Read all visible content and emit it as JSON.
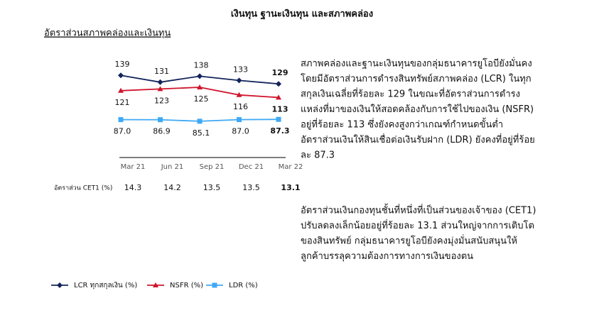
{
  "header": {
    "title": "เงินทุน ฐานะเงินทุน และสภาพคล่อง"
  },
  "chart_data": {
    "type": "line",
    "title": "อัตราส่วนสภาพคล่องและเงินทุน",
    "categories": [
      "Mar 21",
      "Jun 21",
      "Sep 21",
      "Dec 21",
      "Mar 22"
    ],
    "series": [
      {
        "name": "LCR ทุกสกุลเงิน (%)",
        "color": "#13245a",
        "marker": "diamond",
        "values": [
          139,
          131,
          138,
          133,
          129
        ]
      },
      {
        "name": "NSFR (%)",
        "color": "#d0142c",
        "marker": "triangle",
        "values": [
          121,
          123,
          125,
          116,
          113
        ]
      },
      {
        "name": "LDR (%)",
        "color": "#3fa9f5",
        "marker": "square",
        "values": [
          87.0,
          86.9,
          85.1,
          87.0,
          87.3
        ],
        "value_labels": [
          "87.0",
          "86.9",
          "85.1",
          "87.0",
          "87.3"
        ]
      }
    ],
    "ylim": [
      40,
      160
    ]
  },
  "cet1_table": {
    "label": "อัตราส่วน CET1 (%)",
    "values": [
      14.3,
      14.2,
      13.5,
      13.5,
      13.1
    ]
  },
  "body": {
    "paragraphs": [
      [
        "สภาพคล่องและฐานะเงินทุนของกลุ่มธนาคารยูโอบียังมั่นคง",
        "โดยมีอัตราส่วนการดำรงสินทรัพย์สภาพคล่อง (LCR) ในทุก",
        "สกุลเงินเฉลี่ยที่ร้อยละ 129 ในขณะที่อัตราส่วนการดำรง",
        "แหล่งที่มาของเงินให้สอดคล้องกับการใช้ไปของเงิน (NSFR)",
        "อยู่ที่ร้อยละ 113 ซึ่งยังคงสูงกว่าเกณฑ์กำหนดขั้นต่ำ",
        "อัตราส่วนเงินให้สินเชื่อต่อเงินรับฝาก (LDR) ยังคงที่อยู่ที่ร้อย",
        "ละ 87.3"
      ],
      [
        "อัตราส่วนเงินกองทุนชั้นที่หนึ่งที่เป็นส่วนของเจ้าของ (CET1)",
        "ปรับลดลงเล็กน้อยอยู่ที่ร้อยละ 13.1 ส่วนใหญ่จากการเติบโต",
        "ของสินทรัพย์ กลุ่มธนาคารยูโอบียังคงมุ่งมั่นสนับสนุนให้",
        "ลูกค้าบรรลุความต้องการทางการเงินของตน"
      ]
    ]
  }
}
